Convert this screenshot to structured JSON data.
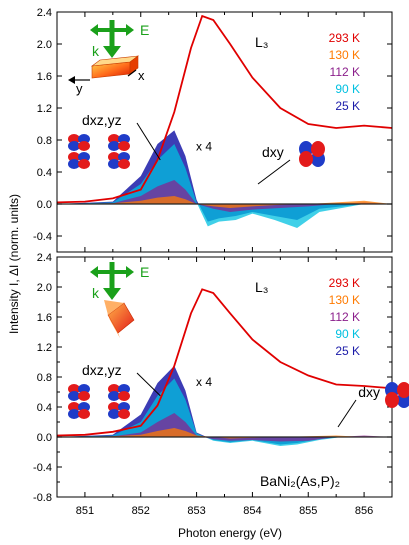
{
  "chart_data": [
    {
      "type": "line",
      "xlabel": "Photon energy (eV)",
      "ylabel": "Intensity I, ΔI (norm. units)",
      "edge_label": "L₃",
      "scale_note": "x 4",
      "orbital_labels": {
        "dxzyz": "dxz,yz",
        "dxy": "dxy"
      },
      "geometry_labels": {
        "E": "E",
        "k": "k",
        "x": "x",
        "y": "y"
      },
      "legend": [
        "293 K",
        "130 K",
        "112 K",
        "90 K",
        "25 K"
      ],
      "xlim": [
        850.5,
        856.5
      ],
      "ylim": [
        -0.6,
        2.4
      ],
      "x_ticks": [
        851,
        852,
        853,
        854,
        855,
        856
      ],
      "y_ticks": [
        -0.4,
        0.0,
        0.4,
        0.8,
        1.2,
        1.6,
        2.0,
        2.4
      ],
      "series": [
        {
          "name": "293 K",
          "color": "#e00000",
          "x": [
            850.5,
            851.0,
            851.5,
            852.0,
            852.3,
            852.6,
            852.9,
            853.1,
            853.3,
            853.6,
            854.0,
            854.5,
            855.0,
            855.5,
            856.0,
            856.5
          ],
          "values": [
            0.02,
            0.03,
            0.07,
            0.18,
            0.55,
            1.15,
            1.95,
            2.35,
            2.3,
            2.0,
            1.58,
            1.2,
            1.0,
            0.95,
            0.98,
            0.95
          ]
        },
        {
          "name": "130 K",
          "color": "#ff7a00",
          "x": [
            850.5,
            851.5,
            852.0,
            852.3,
            852.6,
            852.8,
            853.0,
            853.3,
            853.6,
            854.0,
            854.5,
            855.0,
            855.5,
            856.0,
            856.5
          ],
          "values": [
            0.0,
            0.01,
            0.04,
            0.08,
            0.1,
            0.06,
            0.0,
            -0.03,
            -0.05,
            -0.03,
            -0.01,
            0.0,
            0.02,
            0.04,
            0.0
          ]
        },
        {
          "name": "112 K",
          "color": "#8b1e8b",
          "x": [
            850.5,
            851.5,
            852.0,
            852.3,
            852.6,
            852.8,
            853.0,
            853.3,
            853.6,
            854.0,
            854.5,
            855.0,
            855.5,
            856.0,
            856.5
          ],
          "values": [
            0.0,
            0.01,
            0.1,
            0.22,
            0.3,
            0.18,
            0.0,
            -0.06,
            -0.1,
            -0.07,
            -0.05,
            -0.03,
            0.0,
            0.02,
            0.0
          ]
        },
        {
          "name": "90 K",
          "color": "#00c0e0",
          "x": [
            850.5,
            851.5,
            852.0,
            852.3,
            852.6,
            852.8,
            853.0,
            853.2,
            853.4,
            853.7,
            854.0,
            854.4,
            854.8,
            855.2,
            855.6,
            856.0,
            856.5
          ],
          "values": [
            0.0,
            0.02,
            0.25,
            0.55,
            0.75,
            0.45,
            0.02,
            -0.28,
            -0.22,
            -0.2,
            -0.12,
            -0.2,
            -0.3,
            -0.1,
            -0.05,
            0.0,
            0.0
          ]
        },
        {
          "name": "25 K",
          "color": "#1a1aa8",
          "x": [
            850.5,
            851.5,
            852.0,
            852.3,
            852.6,
            852.8,
            853.0,
            853.2,
            853.4,
            853.7,
            854.0,
            854.4,
            854.8,
            855.2,
            855.6,
            856.0,
            856.5
          ],
          "values": [
            0.0,
            0.03,
            0.35,
            0.75,
            0.92,
            0.6,
            0.05,
            -0.22,
            -0.18,
            -0.15,
            -0.1,
            -0.15,
            -0.2,
            -0.06,
            -0.03,
            0.0,
            0.0
          ]
        }
      ]
    },
    {
      "type": "line",
      "xlabel": "Photon energy (eV)",
      "ylabel": "Intensity I, ΔI (norm. units)",
      "edge_label": "L₃",
      "scale_note": "x 4",
      "compound_label": "BaNi₂(As,P)₂",
      "orbital_labels": {
        "dxzyz": "dxz,yz",
        "dxy": "dxy"
      },
      "geometry_labels": {
        "E": "E",
        "k": "k"
      },
      "legend": [
        "293 K",
        "130 K",
        "112 K",
        "90 K",
        "25 K"
      ],
      "xlim": [
        850.5,
        856.5
      ],
      "ylim": [
        -0.8,
        2.4
      ],
      "x_ticks": [
        851,
        852,
        853,
        854,
        855,
        856
      ],
      "y_ticks": [
        -0.8,
        -0.4,
        0.0,
        0.4,
        0.8,
        1.2,
        1.6,
        2.0,
        2.4
      ],
      "series": [
        {
          "name": "293 K",
          "color": "#e00000",
          "x": [
            850.5,
            851.0,
            851.5,
            852.0,
            852.3,
            852.6,
            852.9,
            853.1,
            853.3,
            853.6,
            854.0,
            854.5,
            855.0,
            855.5,
            856.0,
            856.5
          ],
          "values": [
            0.02,
            0.03,
            0.07,
            0.15,
            0.42,
            0.95,
            1.65,
            1.97,
            1.92,
            1.65,
            1.3,
            1.0,
            0.82,
            0.7,
            0.68,
            0.65
          ]
        },
        {
          "name": "130 K",
          "color": "#ff7a00",
          "x": [
            850.5,
            851.5,
            852.0,
            852.3,
            852.6,
            852.8,
            853.0,
            853.3,
            853.6,
            854.0,
            854.5,
            855.0,
            855.5,
            856.0,
            856.5
          ],
          "values": [
            0.0,
            0.01,
            0.03,
            0.08,
            0.12,
            0.08,
            0.02,
            0.0,
            -0.02,
            -0.01,
            0.0,
            0.01,
            0.02,
            0.0,
            0.0
          ]
        },
        {
          "name": "112 K",
          "color": "#8b1e8b",
          "x": [
            850.5,
            851.5,
            852.0,
            852.3,
            852.6,
            852.8,
            853.0,
            853.3,
            853.6,
            854.0,
            854.5,
            855.0,
            855.5,
            856.0,
            856.5
          ],
          "values": [
            0.0,
            0.01,
            0.06,
            0.2,
            0.32,
            0.2,
            0.02,
            -0.03,
            -0.05,
            -0.04,
            -0.06,
            -0.05,
            0.0,
            0.02,
            0.0
          ]
        },
        {
          "name": "90 K",
          "color": "#00c0e0",
          "x": [
            850.5,
            851.5,
            852.0,
            852.3,
            852.6,
            852.8,
            853.0,
            853.3,
            853.6,
            854.0,
            854.5,
            854.8,
            855.2,
            855.6,
            856.0,
            856.5
          ],
          "values": [
            0.0,
            0.02,
            0.2,
            0.55,
            0.78,
            0.5,
            0.05,
            -0.05,
            -0.08,
            -0.05,
            -0.12,
            -0.1,
            -0.04,
            0.0,
            0.0,
            0.0
          ]
        },
        {
          "name": "25 K",
          "color": "#1a1aa8",
          "x": [
            850.5,
            851.5,
            852.0,
            852.3,
            852.6,
            852.8,
            853.0,
            853.3,
            853.6,
            854.0,
            854.5,
            854.8,
            855.2,
            855.6,
            856.0,
            856.5
          ],
          "values": [
            0.0,
            0.03,
            0.3,
            0.72,
            0.95,
            0.62,
            0.06,
            -0.04,
            -0.07,
            -0.04,
            -0.1,
            -0.08,
            -0.03,
            0.0,
            0.0,
            0.0
          ]
        }
      ]
    }
  ]
}
